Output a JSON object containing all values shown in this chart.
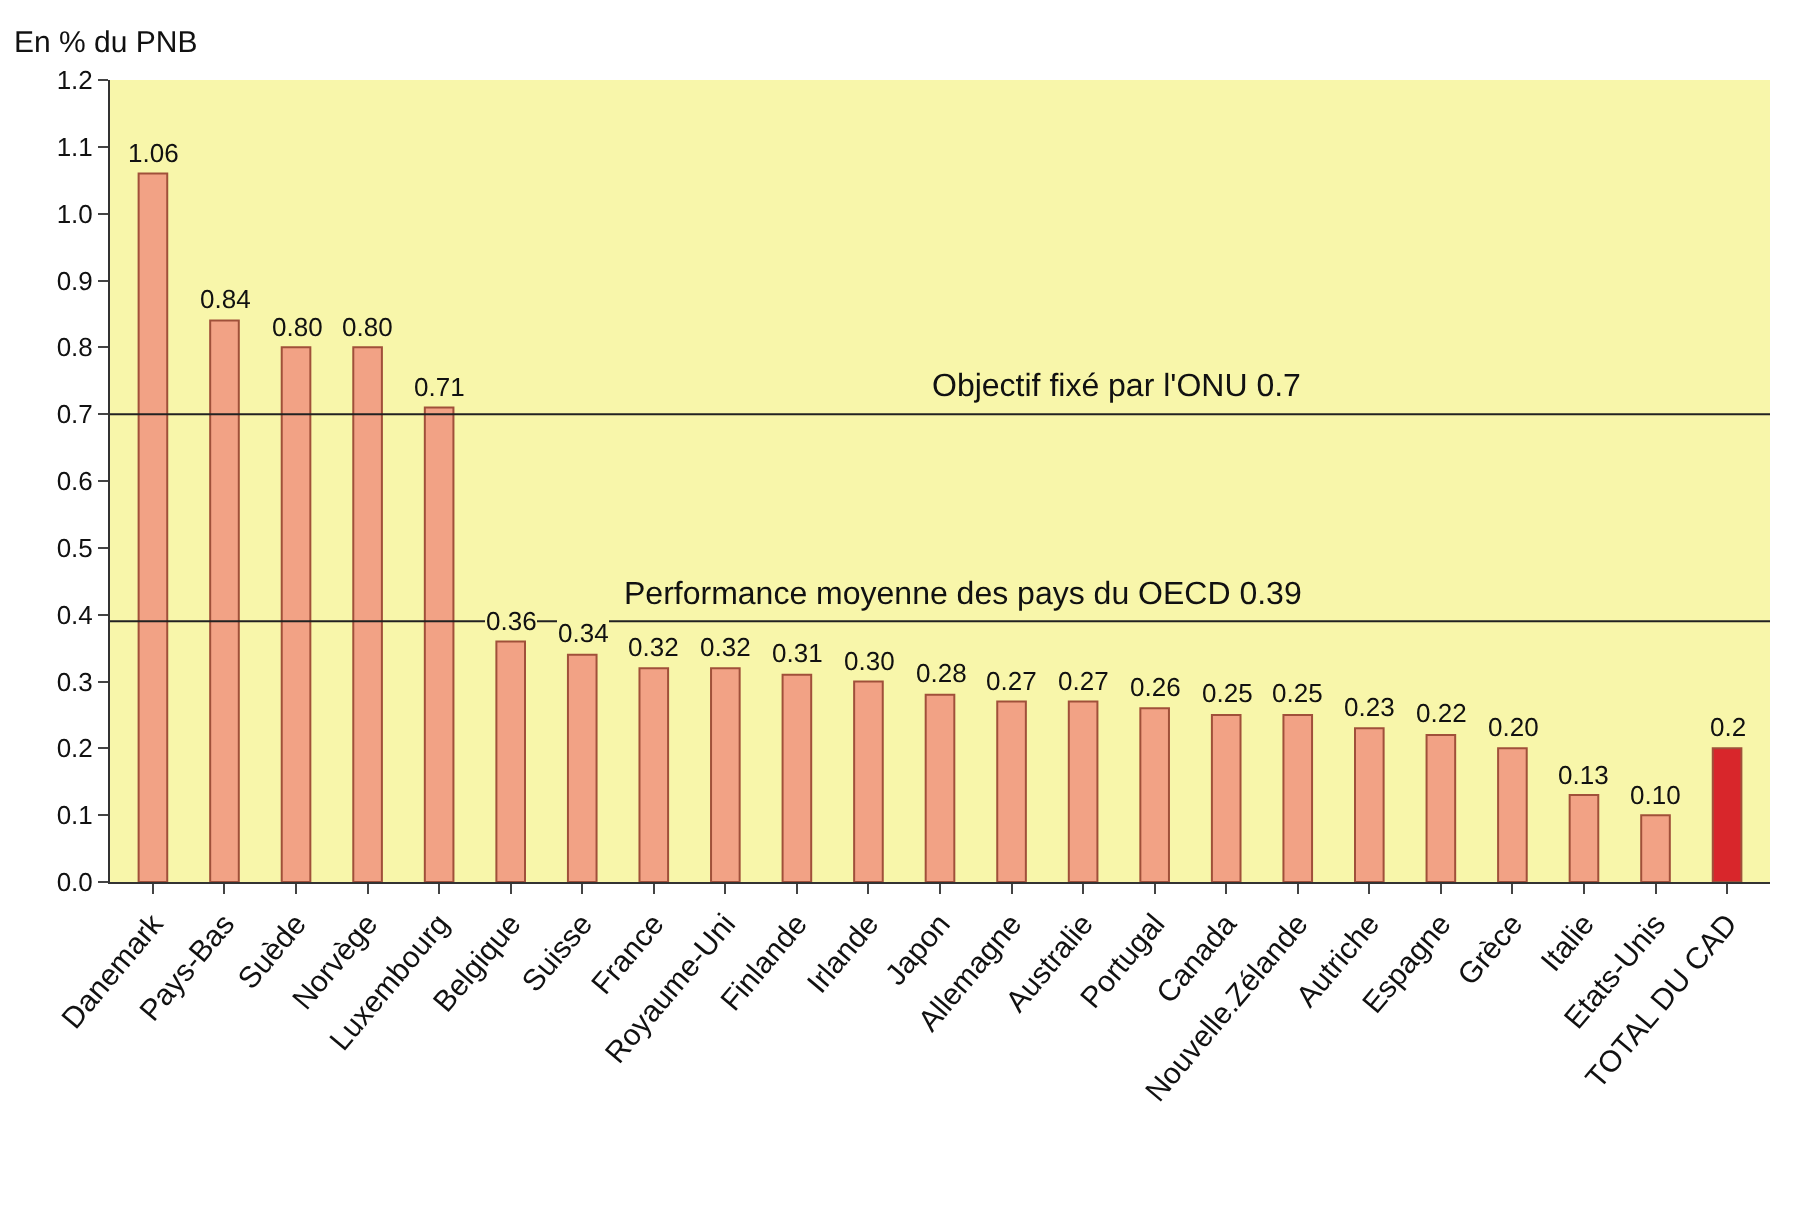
{
  "chart_data": {
    "type": "bar",
    "ylabel": "En % du PNB",
    "categories": [
      "Danemark",
      "Pays-Bas",
      "Suède",
      "Norvège",
      "Luxembourg",
      "Belgique",
      "Suisse",
      "France",
      "Royaume-Uni",
      "Finlande",
      "Irlande",
      "Japon",
      "Allemagne",
      "Australie",
      "Portugal",
      "Canada",
      "Nouvelle.Zélande",
      "Autriche",
      "Espagne",
      "Grèce",
      "Italie",
      "Etats-Unis",
      "TOTAL DU CAD"
    ],
    "values": [
      1.06,
      0.84,
      0.8,
      0.8,
      0.71,
      0.36,
      0.34,
      0.32,
      0.32,
      0.31,
      0.3,
      0.28,
      0.27,
      0.27,
      0.26,
      0.25,
      0.25,
      0.23,
      0.22,
      0.2,
      0.13,
      0.1,
      0.2
    ],
    "value_labels": [
      "1.06",
      "0.84",
      "0.80",
      "0.80",
      "0.71",
      "0.36",
      "0.34",
      "0.32",
      "0.32",
      "0.31",
      "0.30",
      "0.28",
      "0.27",
      "0.27",
      "0.26",
      "0.25",
      "0.25",
      "0.23",
      "0.22",
      "0.20",
      "0.13",
      "0.10",
      "0.2"
    ],
    "colors": [
      "#f2a285",
      "#f2a285",
      "#f2a285",
      "#f2a285",
      "#f2a285",
      "#f2a285",
      "#f2a285",
      "#f2a285",
      "#f2a285",
      "#f2a285",
      "#f2a285",
      "#f2a285",
      "#f2a285",
      "#f2a285",
      "#f2a285",
      "#f2a285",
      "#f2a285",
      "#f2a285",
      "#f2a285",
      "#f2a285",
      "#f2a285",
      "#f2a285",
      "#d8262b"
    ],
    "ylim": [
      0,
      1.2
    ],
    "yticks": [
      {
        "value": 0,
        "label": "0.0"
      },
      {
        "value": 0.1,
        "label": "0.1"
      },
      {
        "value": 0.2,
        "label": "0.2"
      },
      {
        "value": 0.3,
        "label": "0.3"
      },
      {
        "value": 0.4,
        "label": "0.4"
      },
      {
        "value": 0.5,
        "label": "0.5"
      },
      {
        "value": 0.6,
        "label": "0.6"
      },
      {
        "value": 0.7,
        "label": "0.7"
      },
      {
        "value": 0.8,
        "label": "0.8"
      },
      {
        "value": 0.9,
        "label": "0.9"
      },
      {
        "value": 1.0,
        "label": "1.0"
      },
      {
        "value": 1.1,
        "label": "1.1"
      },
      {
        "value": 1.2,
        "label": "1.2"
      }
    ],
    "ref_lines": [
      {
        "axis": "y",
        "value": 0.7,
        "label": "Objectif fixé par l'ONU 0.7",
        "color": "#222222"
      },
      {
        "axis": "y",
        "value": 0.39,
        "label": "Performance moyenne des pays du OECD 0.39",
        "color": "#222222"
      }
    ],
    "grid": false
  }
}
